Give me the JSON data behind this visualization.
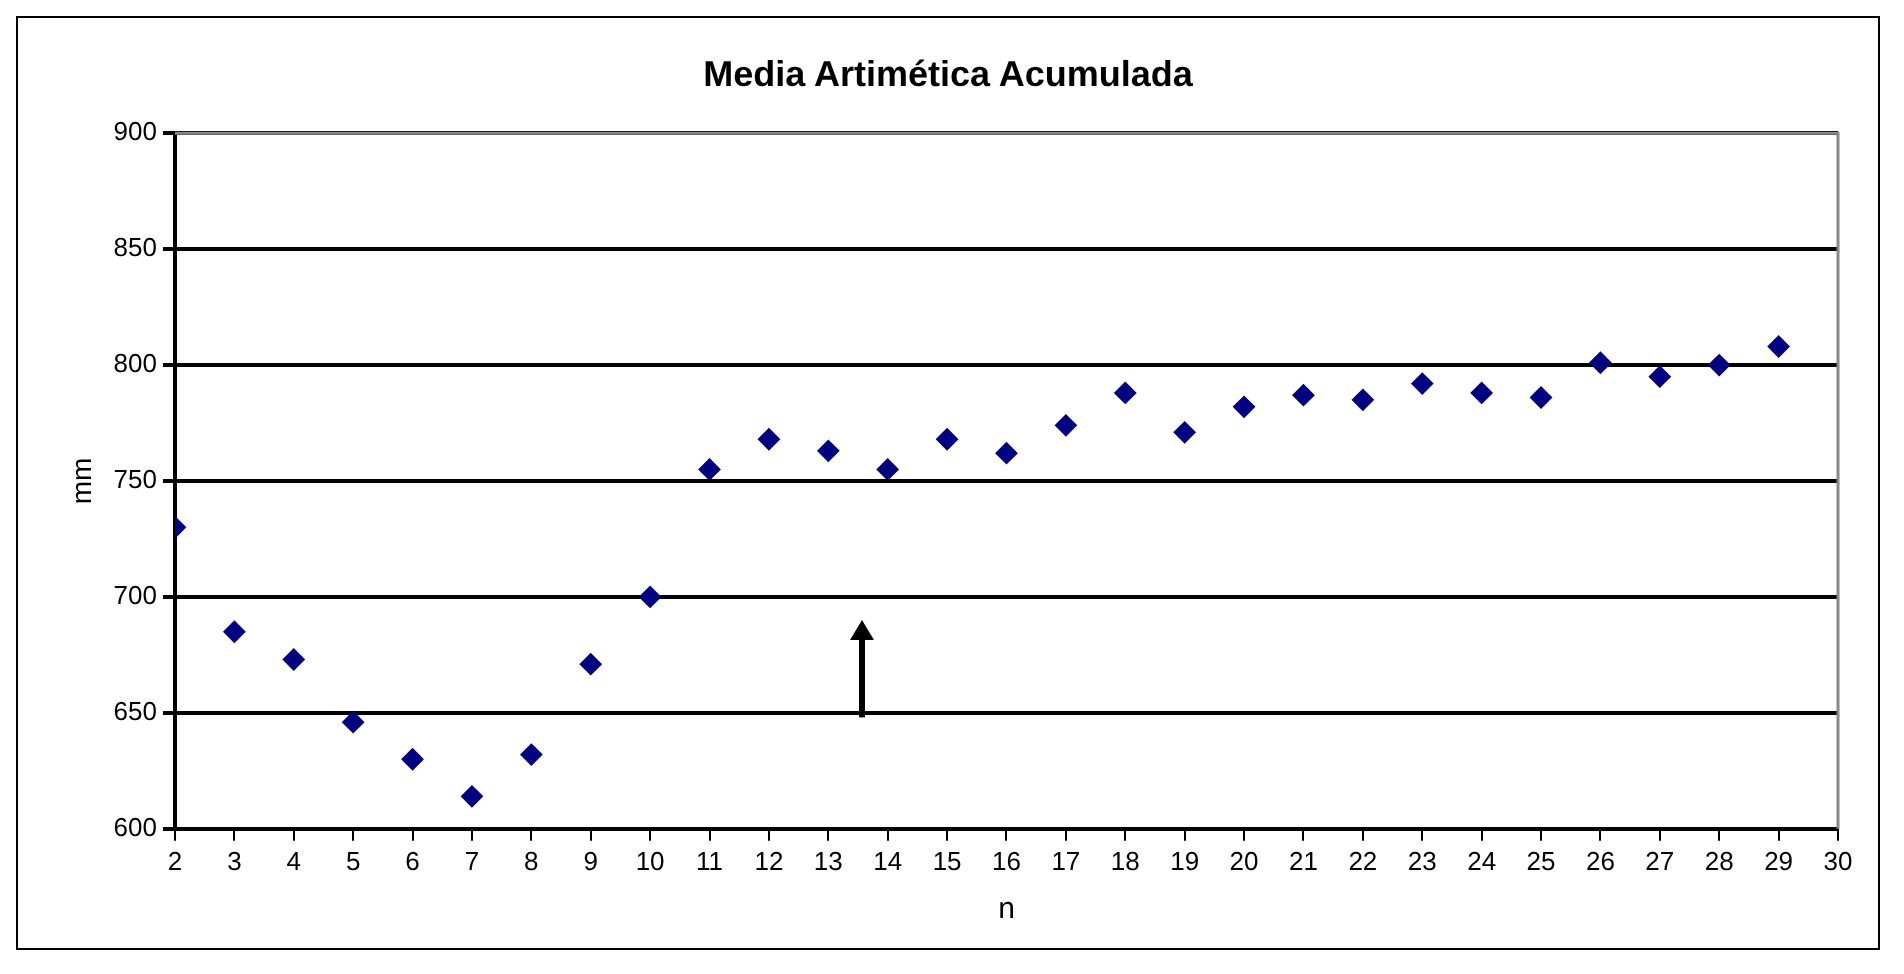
{
  "chart_data": {
    "type": "scatter",
    "title": "Media Artimética Acumulada",
    "xlabel": "n",
    "ylabel": "mm",
    "x": [
      2,
      3,
      4,
      5,
      6,
      7,
      8,
      9,
      10,
      11,
      12,
      13,
      14,
      15,
      16,
      17,
      18,
      19,
      20,
      21,
      22,
      23,
      24,
      25,
      26,
      27,
      28,
      29
    ],
    "series": [
      {
        "color": "#000080",
        "values": [
          730,
          685,
          673,
          646,
          630,
          614,
          632,
          671,
          700,
          755,
          768,
          763,
          755,
          768,
          762,
          774,
          788,
          771,
          782,
          787,
          785,
          792,
          788,
          786,
          801,
          795,
          800,
          808
        ]
      }
    ],
    "xlim": [
      2,
      30
    ],
    "xticks": [
      2,
      3,
      4,
      5,
      6,
      7,
      8,
      9,
      10,
      11,
      12,
      13,
      14,
      15,
      16,
      17,
      18,
      19,
      20,
      21,
      22,
      23,
      24,
      25,
      26,
      27,
      28,
      29,
      30
    ],
    "ylim": [
      600,
      900
    ],
    "yticks": [
      600,
      650,
      700,
      750,
      800,
      850,
      900
    ],
    "grid": "y",
    "legend": false,
    "marker": "diamond"
  }
}
